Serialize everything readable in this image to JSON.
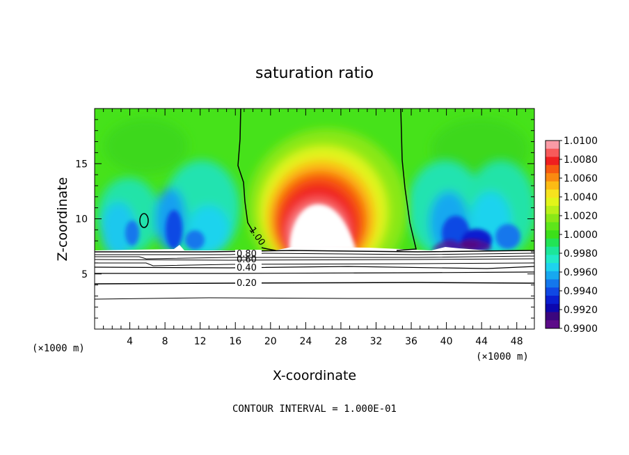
{
  "chart_data": {
    "type": "heatmap",
    "title": "saturation ratio",
    "xlabel": "X-coordinate",
    "ylabel": "Z-coordinate",
    "x_unit": "(×1000 m)",
    "y_unit": "(×1000 m)",
    "footer": "CONTOUR INTERVAL = 1.000E-01",
    "xlim": [
      0,
      50
    ],
    "ylim": [
      0,
      20
    ],
    "x_ticks": [
      4,
      8,
      12,
      16,
      20,
      24,
      28,
      32,
      36,
      40,
      44,
      48
    ],
    "y_ticks": [
      5,
      10,
      15
    ],
    "colorbar": {
      "range": [
        0.99,
        1.01
      ],
      "labels": [
        "1.0100",
        "1.0080",
        "1.0060",
        "1.0040",
        "1.0020",
        "1.0000",
        "0.9980",
        "0.9960",
        "0.9940",
        "0.9920",
        "0.9900"
      ],
      "colors": [
        "#fa9ba5",
        "#f75a5a",
        "#ef1f1f",
        "#f75a10",
        "#fa8a10",
        "#fcbb14",
        "#f6e31e",
        "#e2f51a",
        "#b9f019",
        "#8ae817",
        "#5ee61a",
        "#3cdf1a",
        "#22e355",
        "#1ce69a",
        "#21eac8",
        "#1ed3ee",
        "#17a8f0",
        "#1477ec",
        "#1048e4",
        "#0a1ed0",
        "#0c07ae",
        "#3b067e",
        "#5c0c88"
      ]
    },
    "contour_labels": [
      "1.00",
      "0.80",
      "0.60",
      "0.40",
      "0.20"
    ]
  }
}
